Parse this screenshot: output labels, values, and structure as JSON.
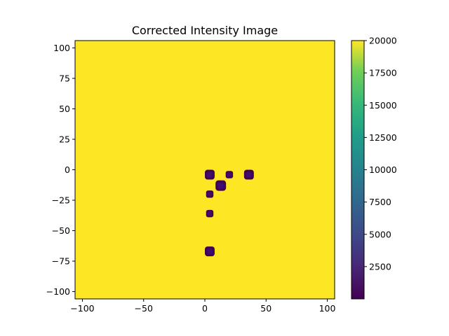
{
  "chart_data": {
    "type": "heatmap",
    "title": "Corrected Intensity Image",
    "xlabel": "",
    "ylabel": "",
    "xlim": [
      -106,
      106
    ],
    "ylim": [
      -106,
      106
    ],
    "x_ticks": [
      -100,
      -50,
      0,
      50,
      100
    ],
    "y_ticks": [
      100,
      75,
      50,
      25,
      0,
      -25,
      -50,
      -75,
      -100
    ],
    "background_value": 20000,
    "spots": [
      {
        "x": 4,
        "y": -4,
        "r": 4.0,
        "value": 0
      },
      {
        "x": 36,
        "y": -4,
        "r": 4.0,
        "value": 0
      },
      {
        "x": 20,
        "y": -4,
        "r": 3.0,
        "value": 0
      },
      {
        "x": 13,
        "y": -13,
        "r": 4.3,
        "value": 0
      },
      {
        "x": 4,
        "y": -20,
        "r": 3.0,
        "value": 0
      },
      {
        "x": 4,
        "y": -36,
        "r": 3.0,
        "value": 0
      },
      {
        "x": 4,
        "y": -67,
        "r": 4.0,
        "value": 0
      }
    ],
    "colorbar": {
      "colormap": "viridis",
      "range": [
        0,
        20000
      ],
      "ticks": [
        2500,
        5000,
        7500,
        10000,
        12500,
        15000,
        17500,
        20000
      ]
    },
    "colors": {
      "viridis_low": "#440154",
      "viridis_high": "#fde725",
      "spot_core": "#3b0f70"
    },
    "grid": false,
    "legend": "none"
  }
}
